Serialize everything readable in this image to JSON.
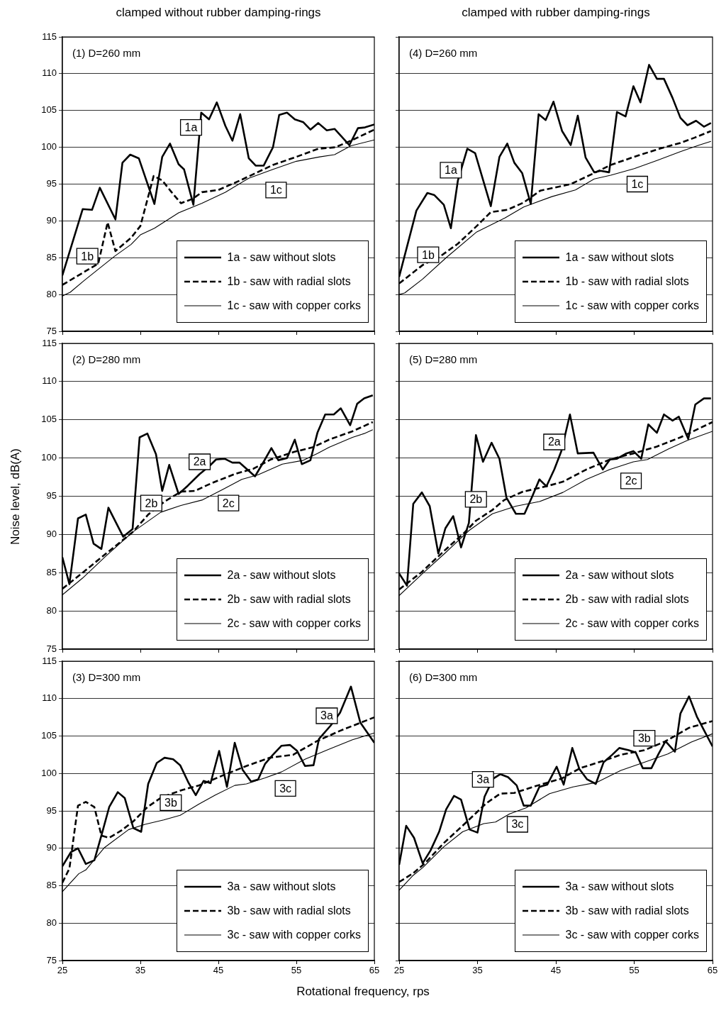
{
  "chart_data": [
    {
      "type": "line",
      "title": "clamped without rubber damping-rings",
      "subtitle": "(1) D=260 mm",
      "xlim": [
        25,
        65
      ],
      "xticks": [
        25,
        35,
        45,
        55,
        65
      ],
      "ylim": [
        75,
        115
      ],
      "yticks": [
        75,
        80,
        85,
        90,
        95,
        100,
        105,
        110,
        115
      ],
      "grid": "y",
      "legend": "bottom right",
      "tick_labels": "y",
      "annotations": [
        {
          "text": "1a",
          "x": 41.5,
          "y": 102.7
        },
        {
          "text": "1b",
          "x": 28.2,
          "y": 85.2
        },
        {
          "text": "1c",
          "x": 52.4,
          "y": 94.2
        }
      ],
      "series": [
        {
          "name": "1a - saw without slots",
          "color": "#000000",
          "line_style": "solid",
          "x": [
            25,
            27.6,
            28.8,
            29.8,
            31.8,
            32.7,
            33.7,
            34.8,
            36.8,
            37.8,
            38.8,
            39.9,
            40.6,
            41.8,
            42.8,
            43.8,
            44.8,
            45.9,
            46.8,
            47.8,
            48.9,
            49.8,
            50.8,
            52,
            52.8,
            53.8,
            54.8,
            55.9,
            56.8,
            57.8,
            58.9,
            59.9,
            61.8,
            62.9,
            63.8,
            65
          ],
          "values": [
            82.6,
            91.6,
            91.5,
            94.5,
            90.2,
            97.9,
            99.0,
            98.5,
            92.3,
            98.7,
            100.5,
            97.7,
            97.0,
            92.2,
            104.7,
            103.8,
            106.1,
            102.9,
            100.9,
            104.5,
            98.5,
            97.5,
            97.5,
            100.0,
            104.4,
            104.7,
            103.8,
            103.4,
            102.4,
            103.3,
            102.3,
            102.5,
            100.3,
            102.6,
            102.7,
            103.1
          ]
        },
        {
          "name": "1b - saw with radial slots",
          "color": "#000000",
          "line_style": "dashed",
          "x": [
            25,
            29.6,
            30.8,
            31.8,
            33.8,
            35,
            36.7,
            37.8,
            39,
            40.2,
            41.7,
            42.9,
            45,
            47.8,
            50,
            52,
            55,
            57.8,
            60,
            62,
            65
          ],
          "values": [
            81.3,
            84.2,
            89.8,
            85.9,
            87.7,
            89.3,
            96.1,
            95.5,
            93.9,
            92.4,
            93.0,
            93.9,
            94.2,
            95.5,
            96.6,
            97.6,
            98.7,
            99.8,
            100.0,
            100.9,
            102.4
          ]
        },
        {
          "name": "1c - saw with copper corks",
          "color": "#000000",
          "line_style": "solid",
          "x": [
            25,
            26,
            27.8,
            31.7,
            33.8,
            35,
            36.8,
            39.9,
            42.9,
            45.9,
            48.9,
            52,
            55,
            58,
            59.9,
            62,
            65
          ],
          "values": [
            79.8,
            80.3,
            81.9,
            85.2,
            86.8,
            88.1,
            89.0,
            91.1,
            92.4,
            93.9,
            95.8,
            97.0,
            98.1,
            98.7,
            99.0,
            100.2,
            101.0
          ]
        }
      ]
    },
    {
      "type": "line",
      "title": "clamped with rubber damping-rings",
      "subtitle": "(4) D=260 mm",
      "xlim": [
        25,
        65
      ],
      "xticks": [
        25,
        35,
        45,
        55,
        65
      ],
      "ylim": [
        75,
        115
      ],
      "yticks": [
        75,
        80,
        85,
        90,
        95,
        100,
        105,
        110,
        115
      ],
      "grid": "y",
      "legend": "bottom right",
      "tick_labels": false,
      "annotations": [
        {
          "text": "1a",
          "x": 31.6,
          "y": 96.9
        },
        {
          "text": "1b",
          "x": 28.7,
          "y": 85.4
        },
        {
          "text": "1c",
          "x": 55.4,
          "y": 95.0
        }
      ],
      "series": [
        {
          "name": "1a - saw without slots",
          "color": "#000000",
          "line_style": "solid",
          "x": [
            25,
            27.2,
            28.6,
            29.5,
            30.7,
            31.6,
            32.5,
            33.7,
            34.7,
            36.7,
            37.8,
            38.8,
            39.7,
            40.7,
            41.8,
            42.8,
            43.7,
            44.7,
            45.8,
            46.9,
            47.8,
            48.8,
            49.9,
            50.7,
            51.8,
            52.8,
            53.9,
            54.9,
            55.8,
            56.9,
            57.9,
            58.8,
            59.9,
            60.9,
            61.8,
            62.9,
            63.9,
            64.8
          ],
          "values": [
            82.4,
            91.4,
            93.8,
            93.5,
            92.2,
            89.0,
            95.5,
            99.8,
            99.2,
            92.0,
            98.7,
            100.5,
            97.9,
            96.5,
            92.3,
            104.5,
            103.7,
            106.2,
            102.2,
            100.3,
            104.3,
            98.6,
            96.6,
            96.8,
            96.6,
            104.8,
            104.2,
            108.3,
            106.1,
            111.2,
            109.3,
            109.3,
            106.7,
            104.0,
            103.0,
            103.6,
            102.8,
            103.3
          ]
        },
        {
          "name": "1b - saw with radial slots",
          "color": "#000000",
          "line_style": "dashed",
          "x": [
            25,
            28,
            30.4,
            32.5,
            34.9,
            36.7,
            38.8,
            40.9,
            43,
            46.9,
            49.9,
            52,
            55,
            57.9,
            60.9,
            62.7,
            64.8
          ],
          "values": [
            81.5,
            84.0,
            85.3,
            86.9,
            89.3,
            91.2,
            91.5,
            92.5,
            94.1,
            95.0,
            96.5,
            97.6,
            98.7,
            99.7,
            100.6,
            101.3,
            102.2
          ]
        },
        {
          "name": "1c - saw with copper corks",
          "color": "#000000",
          "line_style": "solid",
          "x": [
            25,
            25.7,
            28,
            31,
            34.9,
            38.5,
            40.9,
            44.5,
            47.5,
            49.9,
            52,
            55,
            57.9,
            60.9,
            63.3,
            64.8
          ],
          "values": [
            80.0,
            80.2,
            82.1,
            85.0,
            88.5,
            90.4,
            91.9,
            93.3,
            94.2,
            95.7,
            96.2,
            97.1,
            98.2,
            99.4,
            100.3,
            100.8
          ]
        }
      ]
    },
    {
      "type": "line",
      "subtitle": "(2) D=280 mm",
      "ylabel": "Noise level, dB(A)",
      "xlim": [
        25,
        65
      ],
      "xticks": [
        25,
        35,
        45,
        55,
        65
      ],
      "ylim": [
        75,
        115
      ],
      "yticks": [
        75,
        80,
        85,
        90,
        95,
        100,
        105,
        110,
        115
      ],
      "grid": "y",
      "legend": "bottom right",
      "tick_labels": "y",
      "annotations": [
        {
          "text": "2a",
          "x": 42.6,
          "y": 99.5
        },
        {
          "text": "2b",
          "x": 36.4,
          "y": 94.1
        },
        {
          "text": "2c",
          "x": 46.3,
          "y": 94.1
        }
      ],
      "series": [
        {
          "name": "2a - saw without slots",
          "color": "#000000",
          "line_style": "solid",
          "x": [
            25,
            25.9,
            27,
            28,
            29,
            30,
            30.9,
            32.8,
            34,
            34.9,
            35.9,
            37,
            37.8,
            38.7,
            39.9,
            41.1,
            42.6,
            43.8,
            44.7,
            45.8,
            46.8,
            47.7,
            48.6,
            49.7,
            50.8,
            51.8,
            52.7,
            53.8,
            54.8,
            55.7,
            56.8,
            57.7,
            58.7,
            59.8,
            60.7,
            61.9,
            62.8,
            63.7,
            64.8
          ],
          "values": [
            87.0,
            83.5,
            92.1,
            92.6,
            88.8,
            88.1,
            93.5,
            89.7,
            90.7,
            102.7,
            103.2,
            100.5,
            95.7,
            99.1,
            95.3,
            96.4,
            97.9,
            98.9,
            99.8,
            99.9,
            99.4,
            99.4,
            98.6,
            97.6,
            99.5,
            101.3,
            99.7,
            100.0,
            102.4,
            99.2,
            99.7,
            103.3,
            105.7,
            105.7,
            106.5,
            104.3,
            107.1,
            107.8,
            108.2
          ]
        },
        {
          "name": "2b - saw with radial slots",
          "color": "#000000",
          "line_style": "dashed",
          "x": [
            25,
            27.6,
            30.6,
            34,
            36,
            38.1,
            40.2,
            42,
            44.1,
            47.1,
            49.5,
            51.7,
            54.7,
            57.1,
            59.2,
            62.2,
            64.8
          ],
          "values": [
            82.9,
            85.0,
            87.5,
            90.3,
            92.6,
            94.3,
            95.6,
            95.7,
            96.7,
            97.9,
            98.6,
            99.8,
            100.8,
            101.4,
            102.4,
            103.5,
            104.7
          ]
        },
        {
          "name": "2c - saw with copper corks",
          "color": "#000000",
          "line_style": "solid",
          "x": [
            25,
            27.6,
            30.6,
            34,
            37.6,
            40.2,
            42.9,
            45.6,
            48,
            50.1,
            53.2,
            55.9,
            57.7,
            59.2,
            62.2,
            63.7,
            64.8
          ],
          "values": [
            82.1,
            84.3,
            87.2,
            90.3,
            92.9,
            93.8,
            94.5,
            95.9,
            97.2,
            97.8,
            99.2,
            99.7,
            100.6,
            101.4,
            102.7,
            103.2,
            103.7
          ]
        }
      ]
    },
    {
      "type": "line",
      "subtitle": "(5) D=280 mm",
      "xlim": [
        25,
        65
      ],
      "xticks": [
        25,
        35,
        45,
        55,
        65
      ],
      "ylim": [
        75,
        115
      ],
      "yticks": [
        75,
        80,
        85,
        90,
        95,
        100,
        105,
        110,
        115
      ],
      "grid": "y",
      "legend": "bottom right",
      "tick_labels": false,
      "annotations": [
        {
          "text": "2a",
          "x": 44.8,
          "y": 102.1
        },
        {
          "text": "2b",
          "x": 34.8,
          "y": 94.6
        },
        {
          "text": "2c",
          "x": 54.6,
          "y": 97.0
        }
      ],
      "series": [
        {
          "name": "2a - saw without slots",
          "color": "#000000",
          "line_style": "solid",
          "x": [
            25,
            26,
            26.8,
            27.9,
            28.9,
            30,
            30.9,
            31.9,
            32.9,
            33.9,
            34.8,
            35.7,
            36.8,
            37.8,
            38.7,
            39.9,
            41,
            42,
            42.9,
            43.8,
            44.8,
            45.7,
            46.8,
            47.8,
            49.8,
            51,
            51.9,
            52.8,
            54,
            54.9,
            55.9,
            56.8,
            57.9,
            58.8,
            59.9,
            60.7,
            61.9,
            62.8,
            63.9,
            64.8
          ],
          "values": [
            84.9,
            83.3,
            94.0,
            95.5,
            93.7,
            87.5,
            90.8,
            92.4,
            88.3,
            91.5,
            103.0,
            99.5,
            102.0,
            99.9,
            94.8,
            92.7,
            92.7,
            95.0,
            97.2,
            96.3,
            98.5,
            100.9,
            105.7,
            100.6,
            100.7,
            98.5,
            99.8,
            99.9,
            100.6,
            100.9,
            99.9,
            104.4,
            103.3,
            105.7,
            104.9,
            105.4,
            102.5,
            107.0,
            107.8,
            107.8
          ]
        },
        {
          "name": "2b - saw with radial slots",
          "color": "#000000",
          "line_style": "dashed",
          "x": [
            25,
            27.9,
            30.9,
            33.3,
            34.8,
            36.9,
            38.4,
            40.8,
            43.8,
            45.9,
            48.9,
            51.9,
            54.9,
            57.9,
            60.9,
            65
          ],
          "values": [
            82.8,
            85.1,
            88.0,
            90.2,
            91.8,
            93.2,
            94.5,
            95.6,
            96.3,
            96.9,
            98.5,
            99.8,
            100.6,
            101.5,
            102.7,
            104.7
          ]
        },
        {
          "name": "2c - saw with copper corks",
          "color": "#000000",
          "line_style": "solid",
          "x": [
            25,
            27.9,
            30.9,
            33.9,
            36.9,
            39.9,
            42.9,
            45.9,
            48.9,
            51.9,
            54.9,
            56.7,
            59.4,
            61.8,
            65
          ],
          "values": [
            82.0,
            84.8,
            87.6,
            90.5,
            92.7,
            93.7,
            94.3,
            95.5,
            97.2,
            98.5,
            99.5,
            99.8,
            101.2,
            102.3,
            103.5
          ]
        }
      ]
    },
    {
      "type": "line",
      "subtitle": "(3) D=300 mm",
      "xlabel": "Rotational frequency, rps",
      "xlim": [
        25,
        65
      ],
      "xticks": [
        25,
        35,
        45,
        55,
        65
      ],
      "ylim": [
        75,
        115
      ],
      "yticks": [
        75,
        80,
        85,
        90,
        95,
        100,
        105,
        110,
        115
      ],
      "grid": "y",
      "legend": "bottom right",
      "annotations": [
        {
          "text": "3a",
          "x": 58.9,
          "y": 107.7
        },
        {
          "text": "3b",
          "x": 38.9,
          "y": 96.1
        },
        {
          "text": "3c",
          "x": 53.6,
          "y": 98.0
        }
      ],
      "series": [
        {
          "name": "3a - saw without slots",
          "color": "#000000",
          "line_style": "solid",
          "x": [
            25,
            26.1,
            27,
            28,
            29.1,
            30,
            31,
            32.1,
            33,
            34.1,
            35.1,
            36,
            37.1,
            38.1,
            39.2,
            40.1,
            41.2,
            42.1,
            43.1,
            44,
            45.1,
            46.1,
            47.1,
            48.1,
            49.2,
            50.1,
            51,
            52,
            53.1,
            54.2,
            55.1,
            56.1,
            57.2,
            57.9,
            59.4,
            60.6,
            62,
            63.2,
            65
          ],
          "values": [
            87.6,
            89.5,
            90.0,
            87.9,
            88.4,
            91.7,
            95.5,
            97.5,
            96.7,
            92.7,
            92.2,
            98.6,
            101.4,
            102.1,
            101.9,
            101.1,
            98.7,
            97.1,
            99.0,
            98.7,
            103.0,
            98.2,
            104.1,
            100.5,
            98.9,
            99.2,
            101.3,
            102.5,
            103.7,
            103.8,
            103.0,
            101.0,
            101.1,
            104.6,
            106.4,
            108.1,
            111.6,
            106.8,
            104.1
          ]
        },
        {
          "name": "3b - saw with radial slots",
          "color": "#000000",
          "line_style": "dashed",
          "x": [
            25,
            25.9,
            27,
            28,
            29.1,
            30,
            31,
            32.6,
            34.1,
            35.9,
            37.7,
            40.4,
            42.5,
            45.5,
            48.6,
            51.6,
            54.6,
            57.6,
            60.6,
            65
          ],
          "values": [
            85.4,
            87.3,
            95.7,
            96.2,
            95.5,
            91.7,
            91.4,
            92.4,
            93.6,
            95.5,
            96.8,
            97.8,
            98.4,
            99.7,
            101.0,
            102.1,
            102.5,
            104.3,
            105.7,
            107.5
          ]
        },
        {
          "name": "3c - saw with copper corks",
          "color": "#000000",
          "line_style": "solid",
          "x": [
            25,
            27.1,
            28,
            30.4,
            33.5,
            35.6,
            38,
            40.1,
            42.5,
            44.6,
            47.1,
            48.6,
            51,
            53.1,
            56.1,
            59.1,
            62.2,
            65
          ],
          "values": [
            84.2,
            86.6,
            87.1,
            90.1,
            92.5,
            93.2,
            93.8,
            94.4,
            95.9,
            97.1,
            98.4,
            98.6,
            99.4,
            100.2,
            101.9,
            103.2,
            104.5,
            105.4
          ]
        }
      ]
    },
    {
      "type": "line",
      "subtitle": "(6) D=300 mm",
      "xlim": [
        25,
        65
      ],
      "xticks": [
        25,
        35,
        45,
        55,
        65
      ],
      "ylim": [
        75,
        115
      ],
      "yticks": [
        75,
        80,
        85,
        90,
        95,
        100,
        105,
        110,
        115
      ],
      "grid": "y",
      "legend": "bottom right",
      "tick_labels": "x",
      "annotations": [
        {
          "text": "3a",
          "x": 35.7,
          "y": 99.2
        },
        {
          "text": "3b",
          "x": 56.3,
          "y": 104.7
        },
        {
          "text": "3c",
          "x": 40.1,
          "y": 93.2
        }
      ],
      "series": [
        {
          "name": "3a - saw without slots",
          "color": "#000000",
          "line_style": "solid",
          "x": [
            25,
            25.9,
            26.9,
            28,
            29,
            30.1,
            31,
            32,
            32.9,
            34,
            35,
            35.9,
            37,
            37.9,
            38.9,
            40,
            40.9,
            41.8,
            42.9,
            43.9,
            45.1,
            46,
            47.1,
            48,
            49,
            50.1,
            51.1,
            52.2,
            53.1,
            54.3,
            55.2,
            56.1,
            57.2,
            58.1,
            59,
            60.2,
            60.9,
            62,
            63,
            63.9,
            65
          ],
          "values": [
            87.8,
            93.0,
            91.4,
            88.0,
            89.7,
            92.2,
            95.2,
            97.0,
            96.5,
            92.5,
            92.1,
            96.9,
            99.3,
            99.9,
            99.5,
            98.4,
            95.7,
            95.7,
            98.2,
            98.5,
            100.9,
            98.5,
            103.4,
            100.6,
            99.2,
            98.6,
            101.5,
            102.5,
            103.4,
            103.1,
            102.8,
            100.7,
            100.7,
            102.6,
            104.3,
            102.9,
            108.0,
            110.3,
            107.6,
            105.8,
            103.6
          ]
        },
        {
          "name": "3b - saw with radial slots",
          "color": "#000000",
          "line_style": "dashed",
          "x": [
            25,
            26.7,
            28.3,
            30.7,
            33.7,
            36.1,
            37.9,
            39.7,
            42.7,
            45.7,
            48.1,
            51.1,
            53.3,
            56.3,
            59,
            62,
            65
          ],
          "values": [
            85.5,
            86.6,
            88.0,
            90.7,
            93.6,
            96.0,
            97.3,
            97.4,
            98.4,
            99.3,
            100.7,
            101.7,
            102.5,
            103.1,
            104.3,
            106.1,
            107.0
          ]
        },
        {
          "name": "3c - saw with copper corks",
          "color": "#000000",
          "line_style": "solid",
          "x": [
            25,
            26.7,
            28,
            30.7,
            33.1,
            35.8,
            37.3,
            39.1,
            41.2,
            44.2,
            47.2,
            50.2,
            53.3,
            56.3,
            59.3,
            62.3,
            65
          ],
          "values": [
            84.4,
            86.3,
            87.4,
            90.2,
            92.2,
            93.3,
            93.5,
            94.6,
            95.4,
            97.3,
            98.2,
            98.8,
            100.4,
            101.5,
            102.6,
            104.2,
            105.3
          ]
        }
      ]
    }
  ]
}
